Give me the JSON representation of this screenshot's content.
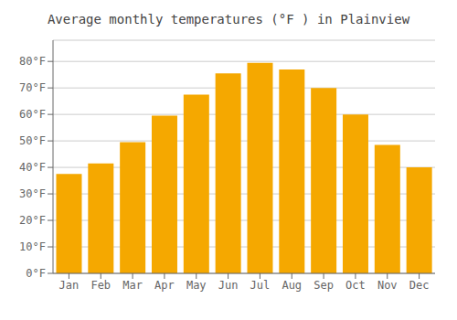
{
  "chart_data": {
    "type": "bar",
    "title": "Average monthly temperatures (°F ) in Plainview",
    "categories": [
      "Jan",
      "Feb",
      "Mar",
      "Apr",
      "May",
      "Jun",
      "Jul",
      "Aug",
      "Sep",
      "Oct",
      "Nov",
      "Dec"
    ],
    "values": [
      37.5,
      41.5,
      49.5,
      59.5,
      67.5,
      75.5,
      79.5,
      77.0,
      70.0,
      60.0,
      48.5,
      40.0
    ],
    "color": "#F5A800",
    "ylim": [
      0,
      88
    ],
    "yticks": [
      {
        "value": 0,
        "label": "0°F"
      },
      {
        "value": 10,
        "label": "10°F"
      },
      {
        "value": 20,
        "label": "20°F"
      },
      {
        "value": 30,
        "label": "30°F"
      },
      {
        "value": 40,
        "label": "40°F"
      },
      {
        "value": 50,
        "label": "50°F"
      },
      {
        "value": 60,
        "label": "60°F"
      },
      {
        "value": 70,
        "label": "70°F"
      },
      {
        "value": 80,
        "label": "80°F"
      }
    ],
    "grid": true
  }
}
